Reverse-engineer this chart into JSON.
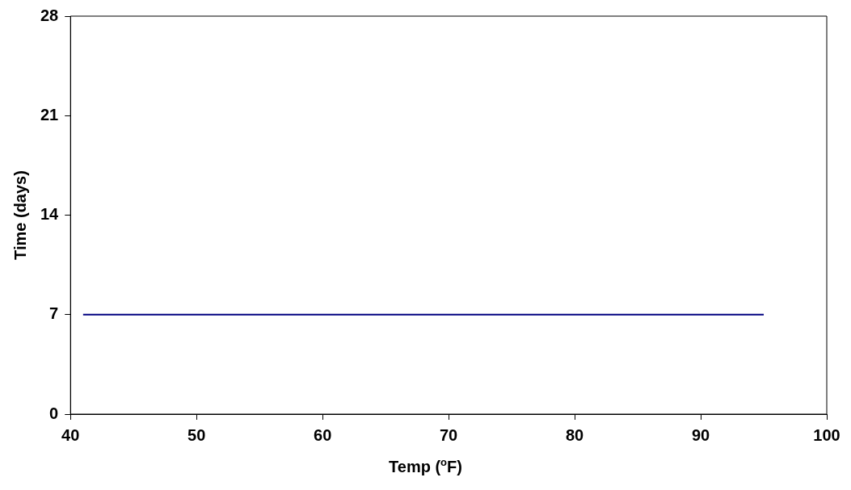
{
  "chart_data": {
    "type": "line",
    "xlabel": "Temp ($^{o}$F)",
    "ylabel": "Time (days)",
    "x": [
      41,
      95
    ],
    "series": [
      {
        "color": "#000080",
        "values": [
          7,
          7
        ]
      }
    ],
    "xlim": [
      40,
      100
    ],
    "xticks": [
      40,
      50,
      60,
      70,
      80,
      90,
      100
    ],
    "ylim": [
      0,
      28
    ],
    "yticks": [
      0,
      7,
      14,
      21,
      28
    ],
    "marker": "none",
    "line_style": "solid",
    "legend": false
  }
}
